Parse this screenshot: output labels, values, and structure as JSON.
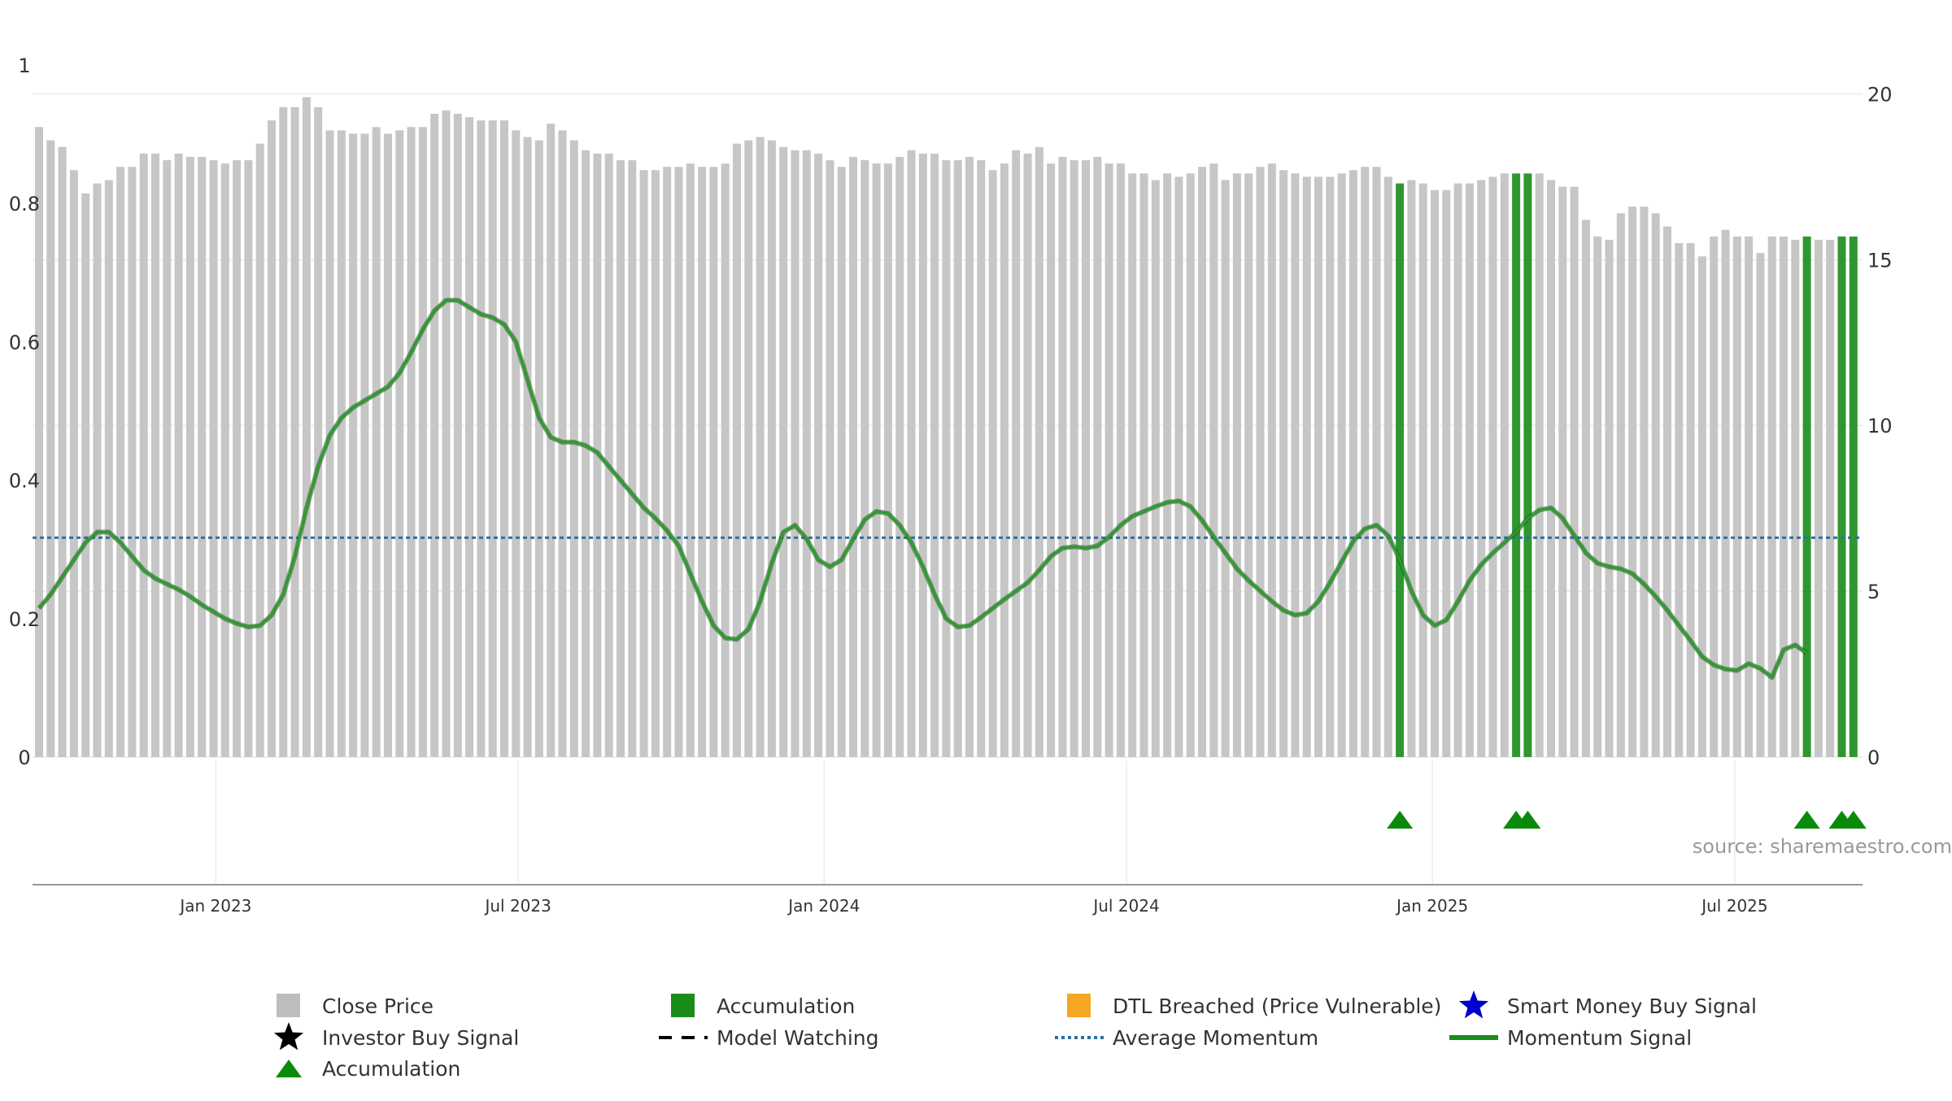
{
  "chart_data": {
    "type": "bar",
    "title": "",
    "source": "source: sharemaestro.com",
    "left_axis": {
      "range": [
        0,
        1
      ],
      "ticks": [
        0,
        0.2,
        0.4,
        0.6,
        0.8,
        1
      ],
      "tick_labels": [
        "0",
        "0.2",
        "0.4",
        "0.6",
        "0.8",
        "1"
      ]
    },
    "right_axis": {
      "range": [
        0,
        20.87
      ],
      "ticks": [
        0,
        5,
        10,
        15,
        20
      ],
      "tick_labels": [
        "0",
        "5",
        "10",
        "15",
        "20"
      ]
    },
    "x_ticks": [
      {
        "week": 15.2,
        "label": "Jan 2023"
      },
      {
        "week": 41.2,
        "label": "Jul 2023"
      },
      {
        "week": 67.5,
        "label": "Jan 2024"
      },
      {
        "week": 93.5,
        "label": "Jul 2024"
      },
      {
        "week": 119.8,
        "label": "Jan 2025"
      },
      {
        "week": 145.8,
        "label": "Jul 2025"
      }
    ],
    "close_price": [
      19.0,
      18.6,
      18.4,
      17.7,
      17.0,
      17.3,
      17.4,
      17.8,
      17.8,
      18.2,
      18.2,
      18.0,
      18.2,
      18.1,
      18.1,
      18.0,
      17.9,
      18.0,
      18.0,
      18.5,
      19.2,
      19.6,
      19.6,
      19.9,
      19.6,
      18.9,
      18.9,
      18.8,
      18.8,
      19.0,
      18.8,
      18.9,
      19.0,
      19.0,
      19.4,
      19.5,
      19.4,
      19.3,
      19.2,
      19.2,
      19.2,
      18.9,
      18.7,
      18.6,
      19.1,
      18.9,
      18.6,
      18.3,
      18.2,
      18.2,
      18.0,
      18.0,
      17.7,
      17.7,
      17.8,
      17.8,
      17.9,
      17.8,
      17.8,
      17.9,
      18.5,
      18.6,
      18.7,
      18.6,
      18.4,
      18.3,
      18.3,
      18.2,
      18.0,
      17.8,
      18.1,
      18.0,
      17.9,
      17.9,
      18.1,
      18.3,
      18.2,
      18.2,
      18.0,
      18.0,
      18.1,
      18.0,
      17.7,
      17.9,
      18.3,
      18.2,
      18.4,
      17.9,
      18.1,
      18.0,
      18.0,
      18.1,
      17.9,
      17.9,
      17.6,
      17.6,
      17.4,
      17.6,
      17.5,
      17.6,
      17.8,
      17.9,
      17.4,
      17.6,
      17.6,
      17.8,
      17.9,
      17.7,
      17.6,
      17.5,
      17.5,
      17.5,
      17.6,
      17.7,
      17.8,
      17.8,
      17.5,
      17.3,
      17.4,
      17.3,
      17.1,
      17.1,
      17.3,
      17.3,
      17.4,
      17.5,
      17.6,
      17.6,
      17.6,
      17.6,
      17.4,
      17.2,
      17.2,
      16.2,
      15.7,
      15.6,
      16.4,
      16.6,
      16.6,
      16.4,
      16.0,
      15.5,
      15.5,
      15.1,
      15.7,
      15.9,
      15.7,
      15.7,
      15.2,
      15.7,
      15.7,
      15.6,
      15.7,
      15.6,
      15.6,
      15.7,
      15.7
    ],
    "accumulation_weeks": [
      117,
      127,
      128,
      152,
      155,
      156
    ],
    "momentum_signal": [
      0.215,
      0.235,
      0.26,
      0.285,
      0.31,
      0.325,
      0.325,
      0.31,
      0.29,
      0.27,
      0.258,
      0.25,
      0.242,
      0.232,
      0.22,
      0.21,
      0.2,
      0.193,
      0.188,
      0.19,
      0.205,
      0.235,
      0.29,
      0.36,
      0.42,
      0.465,
      0.49,
      0.505,
      0.515,
      0.525,
      0.535,
      0.555,
      0.585,
      0.618,
      0.645,
      0.66,
      0.66,
      0.65,
      0.64,
      0.635,
      0.625,
      0.6,
      0.545,
      0.49,
      0.462,
      0.455,
      0.455,
      0.45,
      0.44,
      0.42,
      0.4,
      0.38,
      0.36,
      0.345,
      0.327,
      0.305,
      0.265,
      0.225,
      0.19,
      0.172,
      0.17,
      0.185,
      0.225,
      0.28,
      0.325,
      0.335,
      0.315,
      0.285,
      0.275,
      0.285,
      0.315,
      0.343,
      0.355,
      0.352,
      0.335,
      0.31,
      0.275,
      0.235,
      0.2,
      0.188,
      0.19,
      0.202,
      0.215,
      0.228,
      0.24,
      0.252,
      0.27,
      0.29,
      0.302,
      0.304,
      0.302,
      0.305,
      0.318,
      0.335,
      0.348,
      0.355,
      0.362,
      0.368,
      0.37,
      0.362,
      0.342,
      0.318,
      0.295,
      0.272,
      0.255,
      0.24,
      0.225,
      0.212,
      0.205,
      0.208,
      0.225,
      0.252,
      0.282,
      0.312,
      0.33,
      0.335,
      0.32,
      0.285,
      0.24,
      0.205,
      0.19,
      0.198,
      0.225,
      0.255,
      0.278,
      0.295,
      0.31,
      0.325,
      0.345,
      0.357,
      0.36,
      0.345,
      0.32,
      0.295,
      0.28,
      0.275,
      0.272,
      0.265,
      0.25,
      0.232,
      0.212,
      0.19,
      0.168,
      0.145,
      0.133,
      0.127,
      0.125,
      0.135,
      0.128,
      0.115,
      0.155,
      0.162,
      0.15
    ],
    "average_momentum": 0.317,
    "legend": [
      {
        "key": "close-price",
        "label": "Close Price",
        "color": "#bdbdbd"
      },
      {
        "key": "accumulation-bar",
        "label": "Accumulation",
        "color": "#1a8c1a"
      },
      {
        "key": "dtl-breached",
        "label": "DTL Breached (Price Vulnerable)",
        "color": "#f5a623"
      },
      {
        "key": "smart-money",
        "label": "Smart Money Buy Signal",
        "color": "#0000cc"
      },
      {
        "key": "investor-buy",
        "label": "Investor Buy Signal",
        "color": "#000000"
      },
      {
        "key": "model-watching",
        "label": "Model Watching",
        "color": "#000000"
      },
      {
        "key": "average-momentum",
        "label": "Average Momentum",
        "color": "#2f6f9f"
      },
      {
        "key": "momentum-signal",
        "label": "Momentum Signal",
        "color": "#1a8c1a"
      },
      {
        "key": "accumulation-marker",
        "label": "Accumulation",
        "color": "#0a8a0a"
      }
    ]
  }
}
